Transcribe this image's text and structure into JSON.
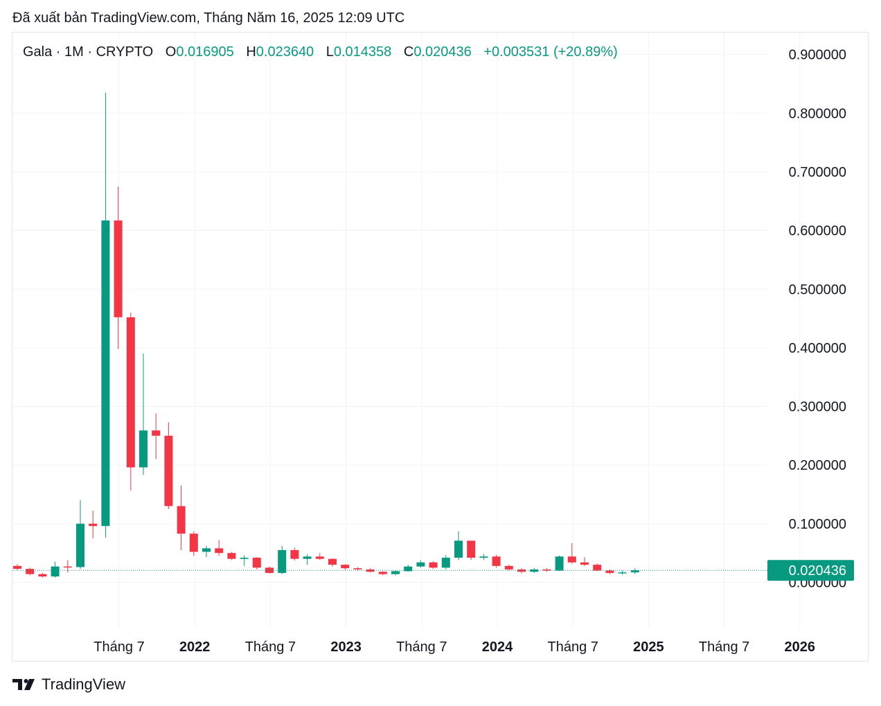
{
  "published": "Đã xuất bản TradingView.com, Tháng Năm 16, 2025 12:09 UTC",
  "legend": {
    "symbol": "Gala · 1M · CRYPTO",
    "o_label": "O",
    "o": "0.016905",
    "h_label": "H",
    "h": "0.023640",
    "l_label": "L",
    "l": "0.014358",
    "c_label": "C",
    "c": "0.020436",
    "change": "+0.003531 (+20.89%)"
  },
  "brand": {
    "name": "TradingView",
    "icon": "tradingview-logo-icon"
  },
  "colors": {
    "up": "#089981",
    "down": "#f23645",
    "grid": "#f0f3fa",
    "badge": "#089981"
  },
  "chart_data": {
    "type": "candlestick",
    "interval": "1M",
    "y_tick_labels": [
      "0.900000",
      "0.800000",
      "0.700000",
      "0.600000",
      "0.500000",
      "0.400000",
      "0.300000",
      "0.200000",
      "0.100000",
      "0.000000"
    ],
    "y_ticks": [
      0.9,
      0.8,
      0.7,
      0.6,
      0.5,
      0.4,
      0.3,
      0.2,
      0.1,
      0.0
    ],
    "x_tick_labels": [
      "Tháng 7",
      "2022",
      "Tháng 7",
      "2023",
      "Tháng 7",
      "2024",
      "Tháng 7",
      "2025",
      "Tháng 7",
      "2026"
    ],
    "x_tick_years": [
      false,
      true,
      false,
      true,
      false,
      true,
      false,
      true,
      false,
      true
    ],
    "x_tick_months": [
      6,
      12,
      18,
      24,
      30,
      36,
      42,
      48,
      54,
      60
    ],
    "ylim": [
      -0.072,
      0.92
    ],
    "last_price_label": "0.020436",
    "last_price": 0.020436,
    "ohlc": [
      [
        0.028,
        0.031,
        0.021,
        0.023
      ],
      [
        0.023,
        0.025,
        0.012,
        0.014
      ],
      [
        0.014,
        0.016,
        0.008,
        0.01
      ],
      [
        0.01,
        0.035,
        0.008,
        0.027
      ],
      [
        0.027,
        0.038,
        0.017,
        0.026
      ],
      [
        0.026,
        0.14,
        0.023,
        0.1
      ],
      [
        0.1,
        0.122,
        0.075,
        0.096
      ],
      [
        0.096,
        0.835,
        0.076,
        0.617
      ],
      [
        0.617,
        0.675,
        0.398,
        0.452
      ],
      [
        0.452,
        0.46,
        0.157,
        0.196
      ],
      [
        0.196,
        0.39,
        0.183,
        0.259
      ],
      [
        0.259,
        0.288,
        0.21,
        0.25
      ],
      [
        0.25,
        0.273,
        0.125,
        0.13
      ],
      [
        0.13,
        0.165,
        0.055,
        0.083
      ],
      [
        0.083,
        0.087,
        0.045,
        0.052
      ],
      [
        0.052,
        0.062,
        0.043,
        0.058
      ],
      [
        0.058,
        0.072,
        0.045,
        0.05
      ],
      [
        0.05,
        0.052,
        0.038,
        0.04
      ],
      [
        0.04,
        0.046,
        0.028,
        0.042
      ],
      [
        0.042,
        0.043,
        0.022,
        0.025
      ],
      [
        0.025,
        0.027,
        0.015,
        0.016
      ],
      [
        0.016,
        0.062,
        0.014,
        0.055
      ],
      [
        0.055,
        0.059,
        0.037,
        0.04
      ],
      [
        0.04,
        0.048,
        0.03,
        0.044
      ],
      [
        0.044,
        0.05,
        0.038,
        0.04
      ],
      [
        0.04,
        0.041,
        0.027,
        0.03
      ],
      [
        0.03,
        0.031,
        0.021,
        0.024
      ],
      [
        0.024,
        0.026,
        0.019,
        0.022
      ],
      [
        0.022,
        0.024,
        0.017,
        0.018
      ],
      [
        0.018,
        0.019,
        0.012,
        0.014
      ],
      [
        0.014,
        0.021,
        0.012,
        0.019
      ],
      [
        0.019,
        0.03,
        0.018,
        0.027
      ],
      [
        0.027,
        0.038,
        0.025,
        0.034
      ],
      [
        0.034,
        0.036,
        0.023,
        0.025
      ],
      [
        0.025,
        0.046,
        0.022,
        0.042
      ],
      [
        0.042,
        0.087,
        0.038,
        0.071
      ],
      [
        0.071,
        0.071,
        0.038,
        0.042
      ],
      [
        0.042,
        0.048,
        0.038,
        0.044
      ],
      [
        0.044,
        0.047,
        0.025,
        0.028
      ],
      [
        0.028,
        0.03,
        0.02,
        0.022
      ],
      [
        0.022,
        0.024,
        0.015,
        0.018
      ],
      [
        0.018,
        0.024,
        0.016,
        0.022
      ],
      [
        0.022,
        0.024,
        0.018,
        0.02
      ],
      [
        0.02,
        0.046,
        0.019,
        0.044
      ],
      [
        0.044,
        0.067,
        0.032,
        0.034
      ],
      [
        0.034,
        0.043,
        0.028,
        0.03
      ],
      [
        0.03,
        0.032,
        0.019,
        0.02
      ],
      [
        0.02,
        0.022,
        0.014,
        0.016
      ],
      [
        0.016,
        0.02,
        0.013,
        0.017
      ],
      [
        0.017,
        0.024,
        0.014,
        0.020436
      ]
    ]
  }
}
